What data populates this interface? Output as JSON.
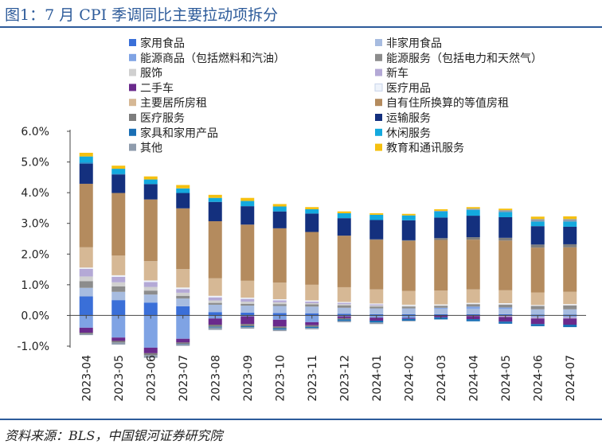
{
  "figure": {
    "title": "图1：7 月 CPI 季调同比主要拉动项拆分",
    "source": "资料来源：BLS，中国银河证券研究院"
  },
  "chart_data": {
    "type": "bar",
    "stacked": true,
    "categories": [
      "2023-04",
      "2023-05",
      "2023-06",
      "2023-07",
      "2023-08",
      "2023-09",
      "2023-10",
      "2023-11",
      "2023-12",
      "2024-01",
      "2024-02",
      "2024-03",
      "2024-04",
      "2024-05",
      "2024-06",
      "2024-07"
    ],
    "title": "",
    "xlabel": "",
    "ylabel": "",
    "ylim": [
      -1.0,
      6.0
    ],
    "yticks": [
      -1.0,
      0.0,
      1.0,
      2.0,
      3.0,
      4.0,
      5.0,
      6.0
    ],
    "ytick_labels": [
      "-1.0%",
      "0.0%",
      "1.0%",
      "2.0%",
      "3.0%",
      "4.0%",
      "5.0%",
      "6.0%"
    ],
    "grid": false,
    "legend_position": "top",
    "series": [
      {
        "name": "家用食品",
        "color": "#3a6fd8",
        "values": [
          0.62,
          0.5,
          0.42,
          0.3,
          0.11,
          0.09,
          0.08,
          0.07,
          0.05,
          0.04,
          0.04,
          0.04,
          0.04,
          0.04,
          0.03,
          0.03
        ]
      },
      {
        "name": "非家用食品",
        "color": "#a7bce0",
        "values": [
          0.28,
          0.27,
          0.26,
          0.25,
          0.24,
          0.23,
          0.23,
          0.22,
          0.2,
          0.19,
          0.19,
          0.18,
          0.18,
          0.17,
          0.17,
          0.17
        ]
      },
      {
        "name": "能源商品（包括燃料和汽油）",
        "color": "#7fa3e4",
        "values": [
          -0.4,
          -0.72,
          -1.05,
          -0.76,
          -0.1,
          -0.03,
          -0.14,
          -0.22,
          -0.03,
          -0.07,
          -0.08,
          0.03,
          0.07,
          0.05,
          -0.05,
          -0.05
        ]
      },
      {
        "name": "能源服务（包括电力和天然气）",
        "color": "#8c8c8c",
        "values": [
          0.22,
          0.18,
          0.13,
          0.09,
          0.06,
          0.06,
          0.06,
          0.07,
          0.08,
          0.06,
          0.06,
          0.07,
          0.08,
          0.09,
          0.11,
          0.13
        ]
      },
      {
        "name": "服饰",
        "color": "#d0d0d0",
        "values": [
          0.15,
          0.13,
          0.12,
          0.1,
          0.08,
          0.07,
          0.06,
          0.04,
          0.04,
          0.04,
          0.03,
          0.01,
          0.01,
          0.02,
          0.0,
          0.01
        ]
      },
      {
        "name": "新车",
        "color": "#b4a9d6",
        "values": [
          0.25,
          0.18,
          0.16,
          0.12,
          0.1,
          0.09,
          0.06,
          0.05,
          0.04,
          0.03,
          0.0,
          0.0,
          -0.02,
          -0.05,
          -0.05,
          -0.05
        ]
      },
      {
        "name": "二手车",
        "color": "#6a2a8c",
        "values": [
          -0.16,
          -0.11,
          -0.18,
          -0.12,
          -0.2,
          -0.25,
          -0.22,
          -0.1,
          -0.06,
          -0.1,
          -0.03,
          -0.06,
          -0.1,
          -0.15,
          -0.18,
          -0.2
        ]
      },
      {
        "name": "医疗用品",
        "color": "#eef3fb",
        "values": [
          0.04,
          0.05,
          0.05,
          0.05,
          0.05,
          0.04,
          0.04,
          0.04,
          0.03,
          0.03,
          0.03,
          0.03,
          0.03,
          0.03,
          0.03,
          0.03
        ]
      },
      {
        "name": "主要居所房租",
        "color": "#d6b895",
        "values": [
          0.66,
          0.64,
          0.63,
          0.6,
          0.57,
          0.55,
          0.54,
          0.51,
          0.48,
          0.46,
          0.45,
          0.45,
          0.44,
          0.42,
          0.41,
          0.4
        ]
      },
      {
        "name": "自有住所换算的等值房租",
        "color": "#b48b5e",
        "values": [
          2.07,
          2.04,
          2.01,
          1.98,
          1.86,
          1.83,
          1.77,
          1.72,
          1.68,
          1.62,
          1.63,
          1.65,
          1.62,
          1.62,
          1.46,
          1.45
        ]
      },
      {
        "name": "医疗服务",
        "color": "#7d7d7d",
        "values": [
          -0.04,
          -0.05,
          -0.06,
          -0.05,
          -0.07,
          -0.07,
          -0.06,
          -0.05,
          -0.04,
          0.01,
          0.02,
          0.06,
          0.08,
          0.09,
          0.1,
          0.1
        ]
      },
      {
        "name": "运输服务",
        "color": "#14307e",
        "values": [
          0.65,
          0.6,
          0.5,
          0.5,
          0.63,
          0.6,
          0.55,
          0.6,
          0.57,
          0.63,
          0.65,
          0.67,
          0.7,
          0.67,
          0.6,
          0.57
        ]
      },
      {
        "name": "家具和家用产品",
        "color": "#1a6fb5",
        "values": [
          0.04,
          0.02,
          0.0,
          -0.01,
          -0.02,
          -0.03,
          -0.04,
          -0.04,
          -0.05,
          -0.06,
          -0.06,
          -0.07,
          -0.07,
          -0.07,
          -0.07,
          -0.08
        ]
      },
      {
        "name": "休闲服务",
        "color": "#13a9de",
        "values": [
          0.2,
          0.17,
          0.15,
          0.15,
          0.13,
          0.17,
          0.16,
          0.14,
          0.16,
          0.17,
          0.16,
          0.2,
          0.19,
          0.17,
          0.15,
          0.17
        ]
      },
      {
        "name": "其他",
        "color": "#8f9cad",
        "values": [
          -0.04,
          -0.07,
          -0.09,
          -0.05,
          -0.08,
          -0.05,
          -0.05,
          -0.04,
          -0.04,
          -0.05,
          -0.02,
          0.02,
          0.04,
          0.06,
          0.08,
          0.08
        ]
      },
      {
        "name": "教育和通讯服务",
        "color": "#f5c010",
        "values": [
          0.12,
          0.1,
          0.1,
          0.11,
          0.1,
          0.1,
          0.08,
          0.07,
          0.06,
          0.05,
          0.05,
          0.05,
          0.05,
          0.05,
          0.08,
          0.09
        ]
      }
    ]
  }
}
